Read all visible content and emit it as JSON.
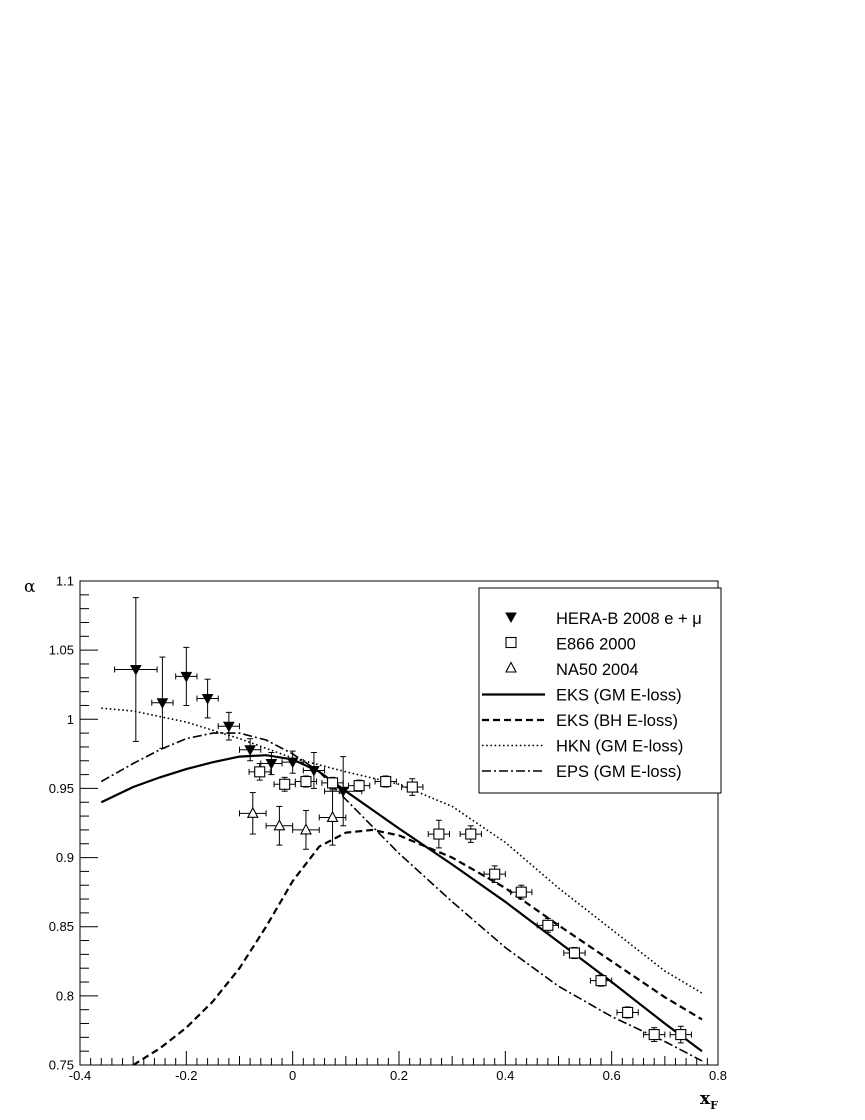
{
  "chart_data": {
    "type": "scatter",
    "title": "",
    "xlabel": "x",
    "xlabel_sub": "F",
    "ylabel": "α",
    "xlim": [
      -0.4,
      0.8
    ],
    "ylim": [
      0.75,
      1.1
    ],
    "grid": false,
    "legend_position": "top-right",
    "x_ticks": [
      -0.4,
      -0.2,
      0,
      0.2,
      0.4,
      0.6,
      0.8
    ],
    "x_tick_labels": [
      "-0.4",
      "-0.2",
      "0",
      "0.2",
      "0.4",
      "0.6",
      "0.8"
    ],
    "y_ticks": [
      0.75,
      0.8,
      0.85,
      0.9,
      0.95,
      1,
      1.05,
      1.1
    ],
    "y_tick_labels": [
      "0.75",
      "0.8",
      "0.85",
      "0.9",
      "0.95",
      "1",
      "1.05",
      "1.1"
    ],
    "series": [
      {
        "name": "HERA-B 2008 e + μ",
        "kind": "points",
        "marker": "triangle-down-filled",
        "points": [
          {
            "x": -0.295,
            "y": 1.036,
            "xerr": 0.04,
            "yerr": 0.052
          },
          {
            "x": -0.245,
            "y": 1.012,
            "xerr": 0.02,
            "yerr": 0.033
          },
          {
            "x": -0.2,
            "y": 1.031,
            "xerr": 0.02,
            "yerr": 0.021
          },
          {
            "x": -0.16,
            "y": 1.015,
            "xerr": 0.02,
            "yerr": 0.014
          },
          {
            "x": -0.12,
            "y": 0.995,
            "xerr": 0.02,
            "yerr": 0.01
          },
          {
            "x": -0.08,
            "y": 0.978,
            "xerr": 0.02,
            "yerr": 0.008
          },
          {
            "x": -0.04,
            "y": 0.968,
            "xerr": 0.02,
            "yerr": 0.008
          },
          {
            "x": 0.0,
            "y": 0.969,
            "xerr": 0.02,
            "yerr": 0.008
          },
          {
            "x": 0.04,
            "y": 0.963,
            "xerr": 0.02,
            "yerr": 0.013
          },
          {
            "x": 0.095,
            "y": 0.948,
            "xerr": 0.035,
            "yerr": 0.025
          }
        ]
      },
      {
        "name": "E866 2000",
        "kind": "points",
        "marker": "square-open",
        "points": [
          {
            "x": -0.062,
            "y": 0.962,
            "xerr": 0.02,
            "yerr": 0.006
          },
          {
            "x": -0.015,
            "y": 0.953,
            "xerr": 0.02,
            "yerr": 0.005
          },
          {
            "x": 0.025,
            "y": 0.955,
            "xerr": 0.02,
            "yerr": 0.004
          },
          {
            "x": 0.075,
            "y": 0.954,
            "xerr": 0.02,
            "yerr": 0.004
          },
          {
            "x": 0.125,
            "y": 0.952,
            "xerr": 0.02,
            "yerr": 0.004
          },
          {
            "x": 0.175,
            "y": 0.955,
            "xerr": 0.02,
            "yerr": 0.004
          },
          {
            "x": 0.225,
            "y": 0.951,
            "xerr": 0.02,
            "yerr": 0.006
          },
          {
            "x": 0.275,
            "y": 0.917,
            "xerr": 0.02,
            "yerr": 0.01
          },
          {
            "x": 0.335,
            "y": 0.917,
            "xerr": 0.02,
            "yerr": 0.006
          },
          {
            "x": 0.38,
            "y": 0.888,
            "xerr": 0.02,
            "yerr": 0.006
          },
          {
            "x": 0.43,
            "y": 0.875,
            "xerr": 0.02,
            "yerr": 0.005
          },
          {
            "x": 0.48,
            "y": 0.851,
            "xerr": 0.02,
            "yerr": 0.005
          },
          {
            "x": 0.53,
            "y": 0.831,
            "xerr": 0.02,
            "yerr": 0.004
          },
          {
            "x": 0.58,
            "y": 0.811,
            "xerr": 0.02,
            "yerr": 0.004
          },
          {
            "x": 0.63,
            "y": 0.788,
            "xerr": 0.02,
            "yerr": 0.004
          },
          {
            "x": 0.68,
            "y": 0.772,
            "xerr": 0.02,
            "yerr": 0.005
          },
          {
            "x": 0.73,
            "y": 0.772,
            "xerr": 0.02,
            "yerr": 0.006
          }
        ]
      },
      {
        "name": "NA50 2004",
        "kind": "points",
        "marker": "triangle-up-open",
        "points": [
          {
            "x": -0.075,
            "y": 0.932,
            "xerr": 0.025,
            "yerr": 0.015
          },
          {
            "x": -0.025,
            "y": 0.923,
            "xerr": 0.025,
            "yerr": 0.014
          },
          {
            "x": 0.025,
            "y": 0.92,
            "xerr": 0.025,
            "yerr": 0.014
          },
          {
            "x": 0.075,
            "y": 0.929,
            "xerr": 0.025,
            "yerr": 0.02
          }
        ]
      },
      {
        "name": "EKS (GM E-loss)",
        "kind": "line",
        "dash": "solid",
        "width": 2.2,
        "x": [
          -0.36,
          -0.3,
          -0.25,
          -0.2,
          -0.15,
          -0.1,
          -0.05,
          0.0,
          0.05,
          0.1,
          0.2,
          0.3,
          0.4,
          0.5,
          0.6,
          0.7,
          0.77
        ],
        "y": [
          0.94,
          0.951,
          0.958,
          0.964,
          0.969,
          0.973,
          0.974,
          0.971,
          0.962,
          0.948,
          0.921,
          0.895,
          0.868,
          0.839,
          0.81,
          0.78,
          0.76
        ]
      },
      {
        "name": "EKS (BH E-loss)",
        "kind": "line",
        "dash": "dashed",
        "width": 2.2,
        "x": [
          -0.3,
          -0.25,
          -0.2,
          -0.15,
          -0.1,
          -0.05,
          0.0,
          0.05,
          0.1,
          0.15,
          0.2,
          0.3,
          0.4,
          0.5,
          0.6,
          0.7,
          0.77
        ],
        "y": [
          0.75,
          0.762,
          0.777,
          0.796,
          0.82,
          0.85,
          0.883,
          0.908,
          0.918,
          0.92,
          0.916,
          0.9,
          0.878,
          0.851,
          0.825,
          0.799,
          0.783
        ]
      },
      {
        "name": "HKN (GM E-loss)",
        "kind": "line",
        "dash": "dotted",
        "width": 1.6,
        "x": [
          -0.36,
          -0.3,
          -0.2,
          -0.1,
          0.0,
          0.1,
          0.2,
          0.3,
          0.4,
          0.5,
          0.6,
          0.7,
          0.77
        ],
        "y": [
          1.008,
          1.006,
          0.998,
          0.986,
          0.972,
          0.962,
          0.953,
          0.937,
          0.911,
          0.878,
          0.848,
          0.818,
          0.802
        ]
      },
      {
        "name": "EPS (GM E-loss)",
        "kind": "line",
        "dash": "dash-dot",
        "width": 1.6,
        "x": [
          -0.36,
          -0.3,
          -0.25,
          -0.2,
          -0.15,
          -0.1,
          -0.05,
          0.0,
          0.05,
          0.1,
          0.2,
          0.3,
          0.4,
          0.5,
          0.6,
          0.7,
          0.77
        ],
        "y": [
          0.955,
          0.968,
          0.978,
          0.986,
          0.99,
          0.99,
          0.985,
          0.975,
          0.962,
          0.942,
          0.903,
          0.868,
          0.835,
          0.807,
          0.785,
          0.767,
          0.753
        ]
      }
    ]
  }
}
